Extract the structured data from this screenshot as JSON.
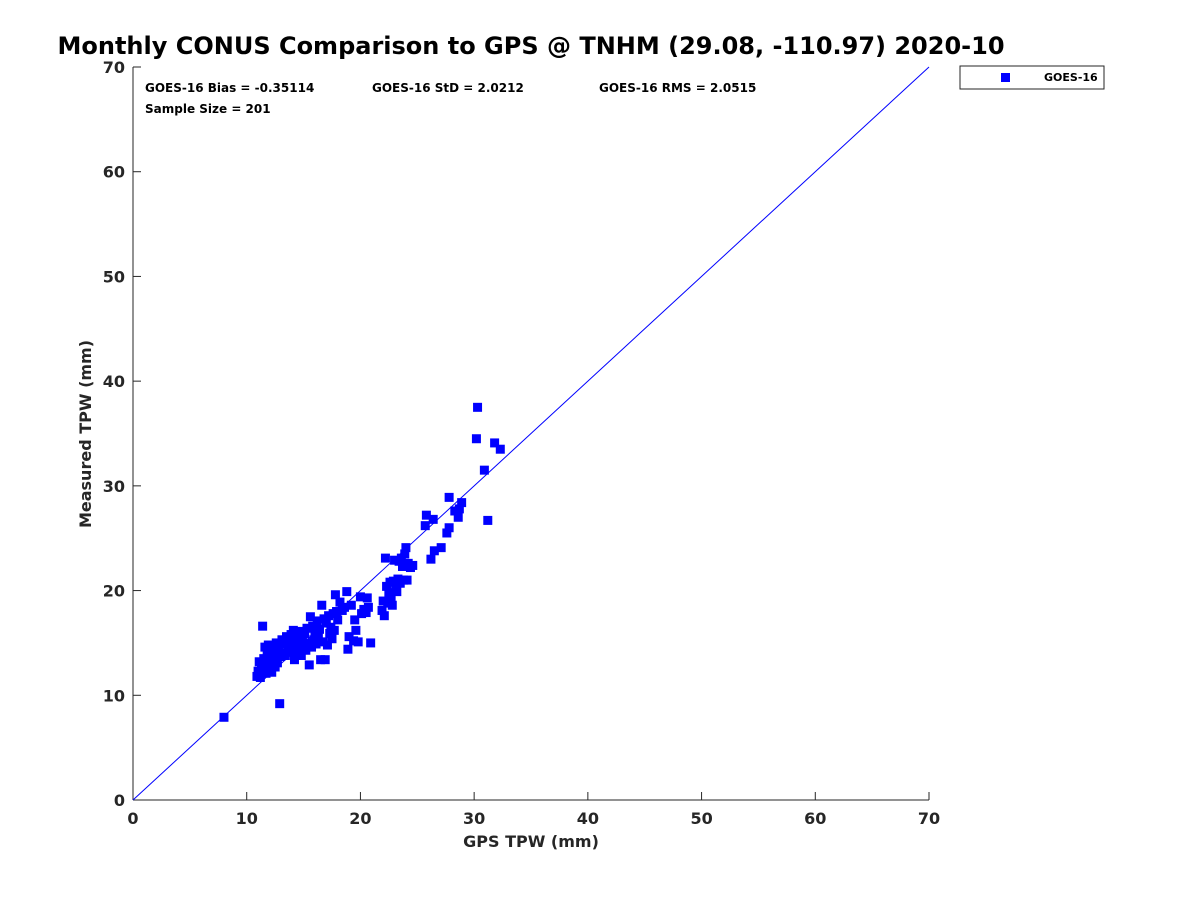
{
  "chart_data": {
    "type": "scatter",
    "title": "Monthly CONUS Comparison to GPS @ TNHM (29.08, -110.97) 2020-10",
    "xlabel": "GPS TPW (mm)",
    "ylabel": "Measured TPW (mm)",
    "xlim": [
      0,
      70
    ],
    "ylim": [
      0,
      70
    ],
    "x_ticks": [
      0,
      10,
      20,
      30,
      40,
      50,
      60,
      70
    ],
    "y_ticks": [
      0,
      10,
      20,
      30,
      40,
      50,
      60,
      70
    ],
    "grid": false,
    "legend_position": "top-right (outside plot)",
    "reference_line": {
      "from": [
        0,
        0
      ],
      "to": [
        70,
        70
      ],
      "color": "#0000ff"
    },
    "annotations": {
      "bias": "GOES-16 Bias = -0.35114",
      "std": "GOES-16 StD = 2.0212",
      "rms": "GOES-16 RMS = 2.0515",
      "sample": "Sample Size = 201"
    },
    "series": [
      {
        "name": "GOES-16",
        "color": "#0000ff",
        "marker": "square",
        "points": [
          [
            8.0,
            7.9
          ],
          [
            10.9,
            11.8
          ],
          [
            11.0,
            12.3
          ],
          [
            11.1,
            13.2
          ],
          [
            11.2,
            11.7
          ],
          [
            11.3,
            12.8
          ],
          [
            11.4,
            16.6
          ],
          [
            11.5,
            13.5
          ],
          [
            11.6,
            14.6
          ],
          [
            11.7,
            12.1
          ],
          [
            11.8,
            13.9
          ],
          [
            11.9,
            14.8
          ],
          [
            12.0,
            12.9
          ],
          [
            12.1,
            13.4
          ],
          [
            12.2,
            12.2
          ],
          [
            12.3,
            14.2
          ],
          [
            12.4,
            13.6
          ],
          [
            12.5,
            12.7
          ],
          [
            12.6,
            15.0
          ],
          [
            12.7,
            13.1
          ],
          [
            12.8,
            14.4
          ],
          [
            12.9,
            9.2
          ],
          [
            13.0,
            13.7
          ],
          [
            13.1,
            15.3
          ],
          [
            13.2,
            14.0
          ],
          [
            13.3,
            14.9
          ],
          [
            13.4,
            13.8
          ],
          [
            13.5,
            15.6
          ],
          [
            13.6,
            14.3
          ],
          [
            13.7,
            15.1
          ],
          [
            13.8,
            14.6
          ],
          [
            13.9,
            15.8
          ],
          [
            14.0,
            14.1
          ],
          [
            14.1,
            16.2
          ],
          [
            14.2,
            13.4
          ],
          [
            14.3,
            15.0
          ],
          [
            14.4,
            14.5
          ],
          [
            14.5,
            15.5
          ],
          [
            14.6,
            14.0
          ],
          [
            14.7,
            16.1
          ],
          [
            14.8,
            13.8
          ],
          [
            14.9,
            15.2
          ],
          [
            15.0,
            14.7
          ],
          [
            15.1,
            15.9
          ],
          [
            15.2,
            14.3
          ],
          [
            15.3,
            16.4
          ],
          [
            15.4,
            15.0
          ],
          [
            15.5,
            12.9
          ],
          [
            15.6,
            17.5
          ],
          [
            15.7,
            14.6
          ],
          [
            15.8,
            16.6
          ],
          [
            15.9,
            15.3
          ],
          [
            16.0,
            16.0
          ],
          [
            16.1,
            14.9
          ],
          [
            16.2,
            17.1
          ],
          [
            16.3,
            15.6
          ],
          [
            16.4,
            16.3
          ],
          [
            16.5,
            13.4
          ],
          [
            16.6,
            18.6
          ],
          [
            16.7,
            15.1
          ],
          [
            16.8,
            17.3
          ],
          [
            16.9,
            13.4
          ],
          [
            17.0,
            16.9
          ],
          [
            17.1,
            14.8
          ],
          [
            17.2,
            17.6
          ],
          [
            17.3,
            15.9
          ],
          [
            17.4,
            16.5
          ],
          [
            17.5,
            15.4
          ],
          [
            17.6,
            17.8
          ],
          [
            17.7,
            16.2
          ],
          [
            17.8,
            19.6
          ],
          [
            17.9,
            18.0
          ],
          [
            18.0,
            17.2
          ],
          [
            18.2,
            18.9
          ],
          [
            18.4,
            18.1
          ],
          [
            18.6,
            18.4
          ],
          [
            18.8,
            19.9
          ],
          [
            18.9,
            14.4
          ],
          [
            19.0,
            15.6
          ],
          [
            19.2,
            18.6
          ],
          [
            19.4,
            15.2
          ],
          [
            19.5,
            17.2
          ],
          [
            19.6,
            16.2
          ],
          [
            19.8,
            15.1
          ],
          [
            20.0,
            19.4
          ],
          [
            20.1,
            17.8
          ],
          [
            20.3,
            18.2
          ],
          [
            20.5,
            17.9
          ],
          [
            20.6,
            19.3
          ],
          [
            20.7,
            18.4
          ],
          [
            20.9,
            15.0
          ],
          [
            21.9,
            18.1
          ],
          [
            22.0,
            19.0
          ],
          [
            22.1,
            17.6
          ],
          [
            22.2,
            23.1
          ],
          [
            22.3,
            20.4
          ],
          [
            22.4,
            18.8
          ],
          [
            22.5,
            19.8
          ],
          [
            22.6,
            20.8
          ],
          [
            22.7,
            19.4
          ],
          [
            22.8,
            18.6
          ],
          [
            22.9,
            20.9
          ],
          [
            23.0,
            22.9
          ],
          [
            23.1,
            20.4
          ],
          [
            23.2,
            19.9
          ],
          [
            23.3,
            21.1
          ],
          [
            23.4,
            22.8
          ],
          [
            23.5,
            20.7
          ],
          [
            23.6,
            23.1
          ],
          [
            23.7,
            22.3
          ],
          [
            23.8,
            21.0
          ],
          [
            23.9,
            23.5
          ],
          [
            24.0,
            24.1
          ],
          [
            24.1,
            21.0
          ],
          [
            24.2,
            22.6
          ],
          [
            24.4,
            22.2
          ],
          [
            24.6,
            22.4
          ],
          [
            25.7,
            26.2
          ],
          [
            25.8,
            27.2
          ],
          [
            26.2,
            23.0
          ],
          [
            26.4,
            26.8
          ],
          [
            26.5,
            23.8
          ],
          [
            27.1,
            24.1
          ],
          [
            27.6,
            25.5
          ],
          [
            27.8,
            26.0
          ],
          [
            27.8,
            28.9
          ],
          [
            28.3,
            27.6
          ],
          [
            28.6,
            27.0
          ],
          [
            28.7,
            27.8
          ],
          [
            28.9,
            28.4
          ],
          [
            30.2,
            34.5
          ],
          [
            30.3,
            37.5
          ],
          [
            30.9,
            31.5
          ],
          [
            31.2,
            26.7
          ],
          [
            31.8,
            34.1
          ],
          [
            32.3,
            33.5
          ]
        ]
      }
    ]
  }
}
